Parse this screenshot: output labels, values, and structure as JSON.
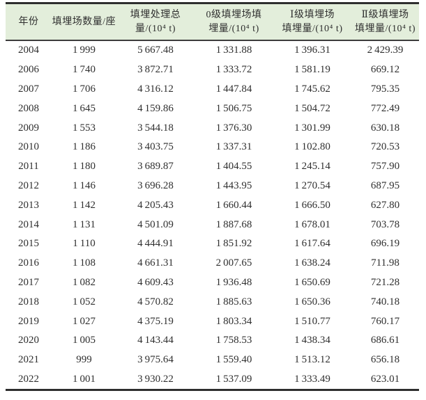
{
  "colors": {
    "header_bg": "#e3eedb",
    "border": "#2e2e2e",
    "text": "#2f2f2f"
  },
  "table": {
    "columns": [
      {
        "line1": "年份",
        "line2": ""
      },
      {
        "line1": "填埋场数量/座",
        "line2": ""
      },
      {
        "line1": "填埋处理总",
        "line2": "量/(10⁴ t)"
      },
      {
        "line1": "0级填埋场填",
        "line2": "埋量/(10⁴ t)"
      },
      {
        "line1": "Ⅰ级填埋场",
        "line2": "填埋量/(10⁴ t)"
      },
      {
        "line1": "Ⅱ级填埋场",
        "line2": "填埋量/(10⁴ t)"
      }
    ]
  },
  "chart_data": {
    "type": "table",
    "title": "",
    "columns": [
      "年份",
      "填埋场数量/座",
      "填埋处理总量/(10⁴ t)",
      "0级填埋场填埋量/(10⁴ t)",
      "Ⅰ级填埋场填埋量/(10⁴ t)",
      "Ⅱ级填埋场填埋量/(10⁴ t)"
    ],
    "rows": [
      [
        2004,
        1999,
        5667.48,
        1331.88,
        1396.31,
        2429.39
      ],
      [
        2006,
        1740,
        3872.71,
        1333.72,
        1581.19,
        669.12
      ],
      [
        2007,
        1706,
        4316.12,
        1447.84,
        1745.62,
        795.35
      ],
      [
        2008,
        1645,
        4159.86,
        1506.75,
        1504.72,
        772.49
      ],
      [
        2009,
        1553,
        3544.18,
        1376.3,
        1301.99,
        630.18
      ],
      [
        2010,
        1186,
        3403.75,
        1337.31,
        1102.8,
        720.53
      ],
      [
        2011,
        1180,
        3689.87,
        1404.55,
        1245.14,
        757.9
      ],
      [
        2012,
        1146,
        3696.28,
        1443.95,
        1270.54,
        687.95
      ],
      [
        2013,
        1142,
        4205.43,
        1660.44,
        1666.5,
        627.8
      ],
      [
        2014,
        1131,
        4501.09,
        1887.68,
        1678.01,
        703.78
      ],
      [
        2015,
        1110,
        4444.91,
        1851.92,
        1617.64,
        696.19
      ],
      [
        2016,
        1108,
        4661.31,
        2007.65,
        1638.24,
        711.98
      ],
      [
        2017,
        1082,
        4609.43,
        1936.48,
        1650.69,
        721.28
      ],
      [
        2018,
        1052,
        4570.82,
        1885.63,
        1650.36,
        740.18
      ],
      [
        2019,
        1027,
        4375.19,
        1803.34,
        1510.77,
        760.17
      ],
      [
        2020,
        1005,
        4143.44,
        1758.53,
        1438.34,
        686.61
      ],
      [
        2021,
        999,
        3975.64,
        1559.4,
        1513.12,
        656.18
      ],
      [
        2022,
        1001,
        3930.22,
        1537.09,
        1333.49,
        623.01
      ]
    ]
  }
}
